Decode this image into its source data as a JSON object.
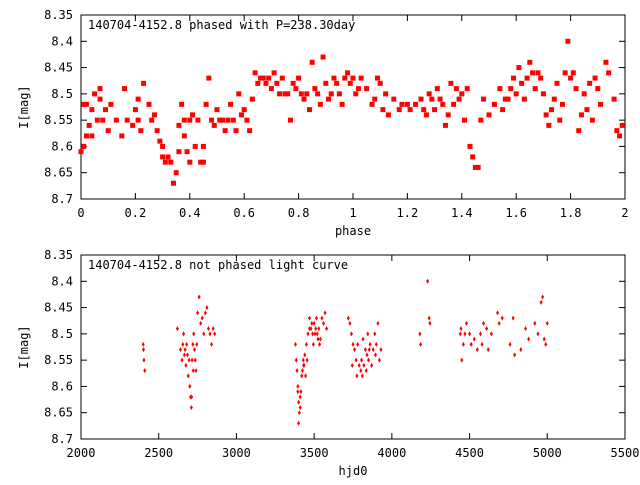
{
  "chart_data": [
    {
      "type": "scatter",
      "title": "140704-4152.8 phased with P=238.30day",
      "xlabel": "phase",
      "ylabel": "I[mag]",
      "xlim": [
        0,
        2
      ],
      "ylim": [
        8.35,
        8.7
      ],
      "y_inverted": true,
      "xticks": [
        0,
        0.2,
        0.4,
        0.6,
        0.8,
        1,
        1.2,
        1.4,
        1.6,
        1.8,
        2
      ],
      "xtick_labels": [
        "0",
        "0.2",
        "0.4",
        "0.6",
        "0.8",
        "1",
        "1.2",
        "1.4",
        "1.6",
        "1.8",
        "2"
      ],
      "yticks": [
        8.35,
        8.4,
        8.45,
        8.5,
        8.55,
        8.6,
        8.65,
        8.7
      ],
      "ytick_labels": [
        "8.35",
        "8.4",
        "8.45",
        "8.5",
        "8.55",
        "8.6",
        "8.65",
        "8.7"
      ],
      "grid": false,
      "marker_color": "#ff0000",
      "points": [
        [
          0.0,
          8.61
        ],
        [
          0.01,
          8.52
        ],
        [
          0.01,
          8.6
        ],
        [
          0.02,
          8.58
        ],
        [
          0.02,
          8.52
        ],
        [
          0.03,
          8.56
        ],
        [
          0.04,
          8.53
        ],
        [
          0.04,
          8.58
        ],
        [
          0.05,
          8.5
        ],
        [
          0.06,
          8.55
        ],
        [
          0.07,
          8.51
        ],
        [
          0.07,
          8.49
        ],
        [
          0.08,
          8.55
        ],
        [
          0.09,
          8.53
        ],
        [
          0.1,
          8.57
        ],
        [
          0.11,
          8.52
        ],
        [
          0.13,
          8.55
        ],
        [
          0.15,
          8.58
        ],
        [
          0.16,
          8.49
        ],
        [
          0.17,
          8.55
        ],
        [
          0.19,
          8.56
        ],
        [
          0.2,
          8.53
        ],
        [
          0.21,
          8.51
        ],
        [
          0.21,
          8.55
        ],
        [
          0.22,
          8.57
        ],
        [
          0.23,
          8.48
        ],
        [
          0.25,
          8.52
        ],
        [
          0.26,
          8.55
        ],
        [
          0.27,
          8.54
        ],
        [
          0.28,
          8.57
        ],
        [
          0.29,
          8.59
        ],
        [
          0.3,
          8.6
        ],
        [
          0.3,
          8.62
        ],
        [
          0.31,
          8.63
        ],
        [
          0.32,
          8.62
        ],
        [
          0.33,
          8.63
        ],
        [
          0.34,
          8.67
        ],
        [
          0.35,
          8.65
        ],
        [
          0.36,
          8.61
        ],
        [
          0.36,
          8.56
        ],
        [
          0.37,
          8.52
        ],
        [
          0.38,
          8.55
        ],
        [
          0.38,
          8.58
        ],
        [
          0.39,
          8.61
        ],
        [
          0.4,
          8.63
        ],
        [
          0.4,
          8.55
        ],
        [
          0.41,
          8.54
        ],
        [
          0.42,
          8.6
        ],
        [
          0.43,
          8.55
        ],
        [
          0.44,
          8.63
        ],
        [
          0.45,
          8.63
        ],
        [
          0.45,
          8.6
        ],
        [
          0.46,
          8.52
        ],
        [
          0.47,
          8.47
        ],
        [
          0.48,
          8.55
        ],
        [
          0.49,
          8.56
        ],
        [
          0.5,
          8.53
        ],
        [
          0.51,
          8.55
        ],
        [
          0.52,
          8.55
        ],
        [
          0.53,
          8.57
        ],
        [
          0.54,
          8.55
        ],
        [
          0.55,
          8.52
        ],
        [
          0.56,
          8.55
        ],
        [
          0.57,
          8.57
        ],
        [
          0.58,
          8.5
        ],
        [
          0.59,
          8.54
        ],
        [
          0.6,
          8.53
        ],
        [
          0.61,
          8.55
        ],
        [
          0.62,
          8.57
        ],
        [
          0.63,
          8.51
        ],
        [
          0.64,
          8.46
        ],
        [
          0.65,
          8.48
        ],
        [
          0.66,
          8.47
        ],
        [
          0.67,
          8.47
        ],
        [
          0.68,
          8.48
        ],
        [
          0.69,
          8.47
        ],
        [
          0.7,
          8.49
        ],
        [
          0.71,
          8.46
        ],
        [
          0.72,
          8.48
        ],
        [
          0.73,
          8.5
        ],
        [
          0.74,
          8.47
        ],
        [
          0.75,
          8.5
        ],
        [
          0.76,
          8.5
        ],
        [
          0.77,
          8.55
        ],
        [
          0.78,
          8.48
        ],
        [
          0.79,
          8.49
        ],
        [
          0.8,
          8.47
        ],
        [
          0.81,
          8.5
        ],
        [
          0.82,
          8.51
        ],
        [
          0.83,
          8.5
        ],
        [
          0.84,
          8.53
        ],
        [
          0.85,
          8.44
        ],
        [
          0.86,
          8.49
        ],
        [
          0.87,
          8.5
        ],
        [
          0.88,
          8.52
        ],
        [
          0.89,
          8.43
        ],
        [
          0.9,
          8.48
        ],
        [
          0.91,
          8.51
        ],
        [
          0.92,
          8.5
        ],
        [
          0.93,
          8.47
        ],
        [
          0.94,
          8.48
        ],
        [
          0.95,
          8.5
        ],
        [
          0.96,
          8.52
        ],
        [
          0.97,
          8.47
        ],
        [
          0.98,
          8.46
        ],
        [
          0.99,
          8.48
        ],
        [
          1.0,
          8.47
        ],
        [
          1.01,
          8.5
        ],
        [
          1.02,
          8.49
        ],
        [
          1.03,
          8.47
        ],
        [
          1.05,
          8.49
        ],
        [
          1.07,
          8.52
        ],
        [
          1.08,
          8.51
        ],
        [
          1.09,
          8.47
        ],
        [
          1.1,
          8.48
        ],
        [
          1.11,
          8.53
        ],
        [
          1.12,
          8.5
        ],
        [
          1.13,
          8.54
        ],
        [
          1.15,
          8.51
        ],
        [
          1.17,
          8.53
        ],
        [
          1.18,
          8.52
        ],
        [
          1.2,
          8.52
        ],
        [
          1.21,
          8.53
        ],
        [
          1.23,
          8.52
        ],
        [
          1.25,
          8.51
        ],
        [
          1.26,
          8.53
        ],
        [
          1.27,
          8.54
        ],
        [
          1.28,
          8.5
        ],
        [
          1.29,
          8.51
        ],
        [
          1.3,
          8.53
        ],
        [
          1.31,
          8.49
        ],
        [
          1.32,
          8.51
        ],
        [
          1.33,
          8.52
        ],
        [
          1.34,
          8.56
        ],
        [
          1.35,
          8.54
        ],
        [
          1.36,
          8.48
        ],
        [
          1.37,
          8.52
        ],
        [
          1.38,
          8.49
        ],
        [
          1.39,
          8.51
        ],
        [
          1.4,
          8.5
        ],
        [
          1.41,
          8.55
        ],
        [
          1.42,
          8.49
        ],
        [
          1.43,
          8.6
        ],
        [
          1.44,
          8.62
        ],
        [
          1.45,
          8.64
        ],
        [
          1.46,
          8.64
        ],
        [
          1.47,
          8.55
        ],
        [
          1.48,
          8.51
        ],
        [
          1.5,
          8.54
        ],
        [
          1.52,
          8.52
        ],
        [
          1.54,
          8.49
        ],
        [
          1.55,
          8.53
        ],
        [
          1.56,
          8.51
        ],
        [
          1.57,
          8.51
        ],
        [
          1.58,
          8.49
        ],
        [
          1.59,
          8.47
        ],
        [
          1.6,
          8.5
        ],
        [
          1.61,
          8.45
        ],
        [
          1.62,
          8.48
        ],
        [
          1.63,
          8.51
        ],
        [
          1.64,
          8.47
        ],
        [
          1.65,
          8.44
        ],
        [
          1.66,
          8.46
        ],
        [
          1.67,
          8.49
        ],
        [
          1.68,
          8.46
        ],
        [
          1.69,
          8.47
        ],
        [
          1.7,
          8.5
        ],
        [
          1.71,
          8.54
        ],
        [
          1.72,
          8.56
        ],
        [
          1.73,
          8.53
        ],
        [
          1.74,
          8.51
        ],
        [
          1.75,
          8.48
        ],
        [
          1.76,
          8.55
        ],
        [
          1.77,
          8.52
        ],
        [
          1.78,
          8.46
        ],
        [
          1.79,
          8.4
        ],
        [
          1.8,
          8.47
        ],
        [
          1.81,
          8.46
        ],
        [
          1.82,
          8.49
        ],
        [
          1.83,
          8.57
        ],
        [
          1.84,
          8.54
        ],
        [
          1.85,
          8.5
        ],
        [
          1.86,
          8.53
        ],
        [
          1.87,
          8.48
        ],
        [
          1.88,
          8.55
        ],
        [
          1.89,
          8.47
        ],
        [
          1.9,
          8.49
        ],
        [
          1.91,
          8.52
        ],
        [
          1.93,
          8.44
        ],
        [
          1.94,
          8.46
        ],
        [
          1.96,
          8.51
        ],
        [
          1.97,
          8.57
        ],
        [
          1.98,
          8.58
        ],
        [
          1.99,
          8.56
        ]
      ]
    },
    {
      "type": "scatter",
      "title": "140704-4152.8 not phased light curve",
      "xlabel": "hjd0",
      "ylabel": "I[mag]",
      "xlim": [
        2000,
        5500
      ],
      "ylim": [
        8.35,
        8.7
      ],
      "y_inverted": true,
      "xticks": [
        2000,
        2500,
        3000,
        3500,
        4000,
        4500,
        5000,
        5500
      ],
      "xtick_labels": [
        "2000",
        "2500",
        "3000",
        "3500",
        "4000",
        "4500",
        "5000",
        "5500"
      ],
      "yticks": [
        8.35,
        8.4,
        8.45,
        8.5,
        8.55,
        8.6,
        8.65,
        8.7
      ],
      "ytick_labels": [
        "8.35",
        "8.4",
        "8.45",
        "8.5",
        "8.55",
        "8.6",
        "8.65",
        "8.7"
      ],
      "grid": false,
      "marker_color": "#ff0000",
      "points": [
        [
          2400,
          8.52
        ],
        [
          2405,
          8.55
        ],
        [
          2410,
          8.57
        ],
        [
          2402,
          8.53
        ],
        [
          2620,
          8.49
        ],
        [
          2640,
          8.53
        ],
        [
          2650,
          8.55
        ],
        [
          2655,
          8.52
        ],
        [
          2660,
          8.5
        ],
        [
          2665,
          8.54
        ],
        [
          2670,
          8.53
        ],
        [
          2675,
          8.56
        ],
        [
          2680,
          8.52
        ],
        [
          2685,
          8.54
        ],
        [
          2690,
          8.58
        ],
        [
          2695,
          8.55
        ],
        [
          2700,
          8.6
        ],
        [
          2705,
          8.62
        ],
        [
          2710,
          8.64
        ],
        [
          2715,
          8.55
        ],
        [
          2720,
          8.52
        ],
        [
          2725,
          8.5
        ],
        [
          2730,
          8.53
        ],
        [
          2740,
          8.57
        ],
        [
          2750,
          8.46
        ],
        [
          2760,
          8.43
        ],
        [
          2770,
          8.48
        ],
        [
          2780,
          8.47
        ],
        [
          2790,
          8.5
        ],
        [
          2800,
          8.46
        ],
        [
          2810,
          8.45
        ],
        [
          2820,
          8.49
        ],
        [
          2830,
          8.5
        ],
        [
          2840,
          8.52
        ],
        [
          2850,
          8.49
        ],
        [
          2860,
          8.5
        ],
        [
          2712,
          8.62
        ],
        [
          2722,
          8.57
        ],
        [
          2735,
          8.55
        ],
        [
          2745,
          8.52
        ],
        [
          3380,
          8.52
        ],
        [
          3385,
          8.55
        ],
        [
          3390,
          8.57
        ],
        [
          3395,
          8.6
        ],
        [
          3400,
          8.63
        ],
        [
          3405,
          8.65
        ],
        [
          3410,
          8.62
        ],
        [
          3415,
          8.61
        ],
        [
          3420,
          8.58
        ],
        [
          3425,
          8.57
        ],
        [
          3430,
          8.55
        ],
        [
          3435,
          8.56
        ],
        [
          3440,
          8.54
        ],
        [
          3445,
          8.58
        ],
        [
          3450,
          8.52
        ],
        [
          3455,
          8.55
        ],
        [
          3460,
          8.5
        ],
        [
          3470,
          8.47
        ],
        [
          3480,
          8.49
        ],
        [
          3490,
          8.5
        ],
        [
          3500,
          8.48
        ],
        [
          3510,
          8.49
        ],
        [
          3520,
          8.5
        ],
        [
          3530,
          8.49
        ],
        [
          3540,
          8.51
        ],
        [
          3550,
          8.47
        ],
        [
          3560,
          8.48
        ],
        [
          3570,
          8.46
        ],
        [
          3580,
          8.49
        ],
        [
          3400,
          8.67
        ],
        [
          3410,
          8.64
        ],
        [
          3395,
          8.61
        ],
        [
          3432,
          8.56
        ],
        [
          3470,
          8.49
        ],
        [
          3485,
          8.48
        ],
        [
          3495,
          8.52
        ],
        [
          3505,
          8.5
        ],
        [
          3515,
          8.47
        ],
        [
          3525,
          8.51
        ],
        [
          3535,
          8.52
        ],
        [
          3720,
          8.47
        ],
        [
          3730,
          8.48
        ],
        [
          3740,
          8.5
        ],
        [
          3750,
          8.52
        ],
        [
          3760,
          8.53
        ],
        [
          3770,
          8.55
        ],
        [
          3780,
          8.52
        ],
        [
          3790,
          8.56
        ],
        [
          3800,
          8.57
        ],
        [
          3810,
          8.58
        ],
        [
          3820,
          8.56
        ],
        [
          3830,
          8.53
        ],
        [
          3840,
          8.54
        ],
        [
          3850,
          8.55
        ],
        [
          3860,
          8.52
        ],
        [
          3870,
          8.56
        ],
        [
          3880,
          8.53
        ],
        [
          3890,
          8.5
        ],
        [
          3900,
          8.52
        ],
        [
          3910,
          8.48
        ],
        [
          3920,
          8.55
        ],
        [
          3930,
          8.53
        ],
        [
          3745,
          8.56
        ],
        [
          3775,
          8.58
        ],
        [
          3805,
          8.55
        ],
        [
          3815,
          8.51
        ],
        [
          3835,
          8.57
        ],
        [
          3845,
          8.5
        ],
        [
          3855,
          8.53
        ],
        [
          3895,
          8.54
        ],
        [
          4180,
          8.5
        ],
        [
          4185,
          8.52
        ],
        [
          4230,
          8.4
        ],
        [
          4240,
          8.47
        ],
        [
          4245,
          8.48
        ],
        [
          4440,
          8.5
        ],
        [
          4445,
          8.49
        ],
        [
          4450,
          8.55
        ],
        [
          4460,
          8.52
        ],
        [
          4470,
          8.5
        ],
        [
          4480,
          8.48
        ],
        [
          4500,
          8.5
        ],
        [
          4510,
          8.52
        ],
        [
          4530,
          8.51
        ],
        [
          4550,
          8.53
        ],
        [
          4570,
          8.5
        ],
        [
          4580,
          8.52
        ],
        [
          4590,
          8.48
        ],
        [
          4610,
          8.49
        ],
        [
          4620,
          8.53
        ],
        [
          4640,
          8.5
        ],
        [
          4680,
          8.46
        ],
        [
          4690,
          8.48
        ],
        [
          4710,
          8.47
        ],
        [
          4760,
          8.52
        ],
        [
          4780,
          8.47
        ],
        [
          4790,
          8.54
        ],
        [
          4830,
          8.53
        ],
        [
          4860,
          8.49
        ],
        [
          4880,
          8.51
        ],
        [
          4920,
          8.48
        ],
        [
          4940,
          8.5
        ],
        [
          4960,
          8.44
        ],
        [
          4970,
          8.43
        ],
        [
          4980,
          8.51
        ],
        [
          4990,
          8.52
        ],
        [
          5000,
          8.48
        ]
      ]
    }
  ]
}
